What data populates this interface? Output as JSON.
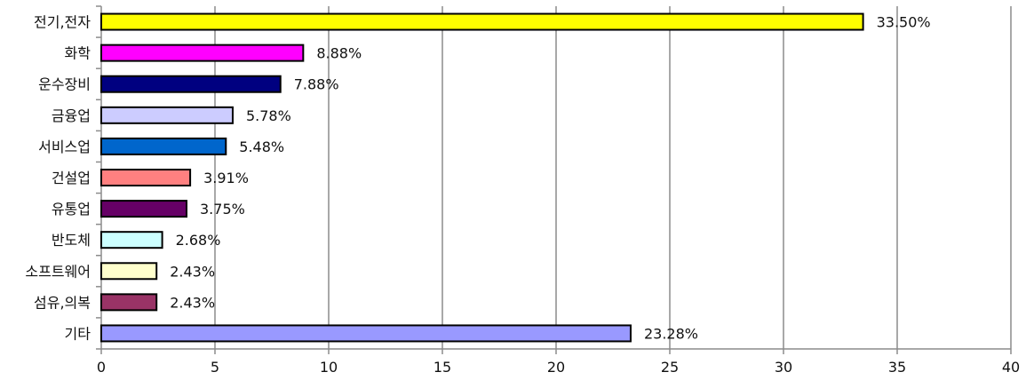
{
  "chart_data": {
    "type": "bar",
    "orientation": "horizontal",
    "title": "",
    "xlabel": "",
    "ylabel": "",
    "xlim": [
      0,
      40
    ],
    "x_ticks": [
      0,
      5,
      10,
      15,
      20,
      25,
      30,
      35,
      40
    ],
    "x_tick_labels": [
      "0",
      "5",
      "10",
      "15",
      "20",
      "25",
      "30",
      "35",
      "40"
    ],
    "grid": "vertical",
    "legend": "none",
    "categories": [
      "전기,전자",
      "화학",
      "운수장비",
      "금융업",
      "서비스업",
      "건설업",
      "유통업",
      "반도체",
      "소프트웨어",
      "섬유,의복",
      "기타"
    ],
    "values": [
      33.5,
      8.88,
      7.88,
      5.78,
      5.48,
      3.91,
      3.75,
      2.68,
      2.43,
      2.43,
      23.28
    ],
    "data_labels": [
      "33.50%",
      "8.88%",
      "7.88%",
      "5.78%",
      "5.48%",
      "3.91%",
      "3.75%",
      "2.68%",
      "2.43%",
      "2.43%",
      "23.28%"
    ],
    "colors": [
      "#ffff00",
      "#ff00ff",
      "#000080",
      "#ccccff",
      "#0066cc",
      "#ff8080",
      "#660066",
      "#ccffff",
      "#ffffcc",
      "#993366",
      "#9999ff"
    ]
  }
}
